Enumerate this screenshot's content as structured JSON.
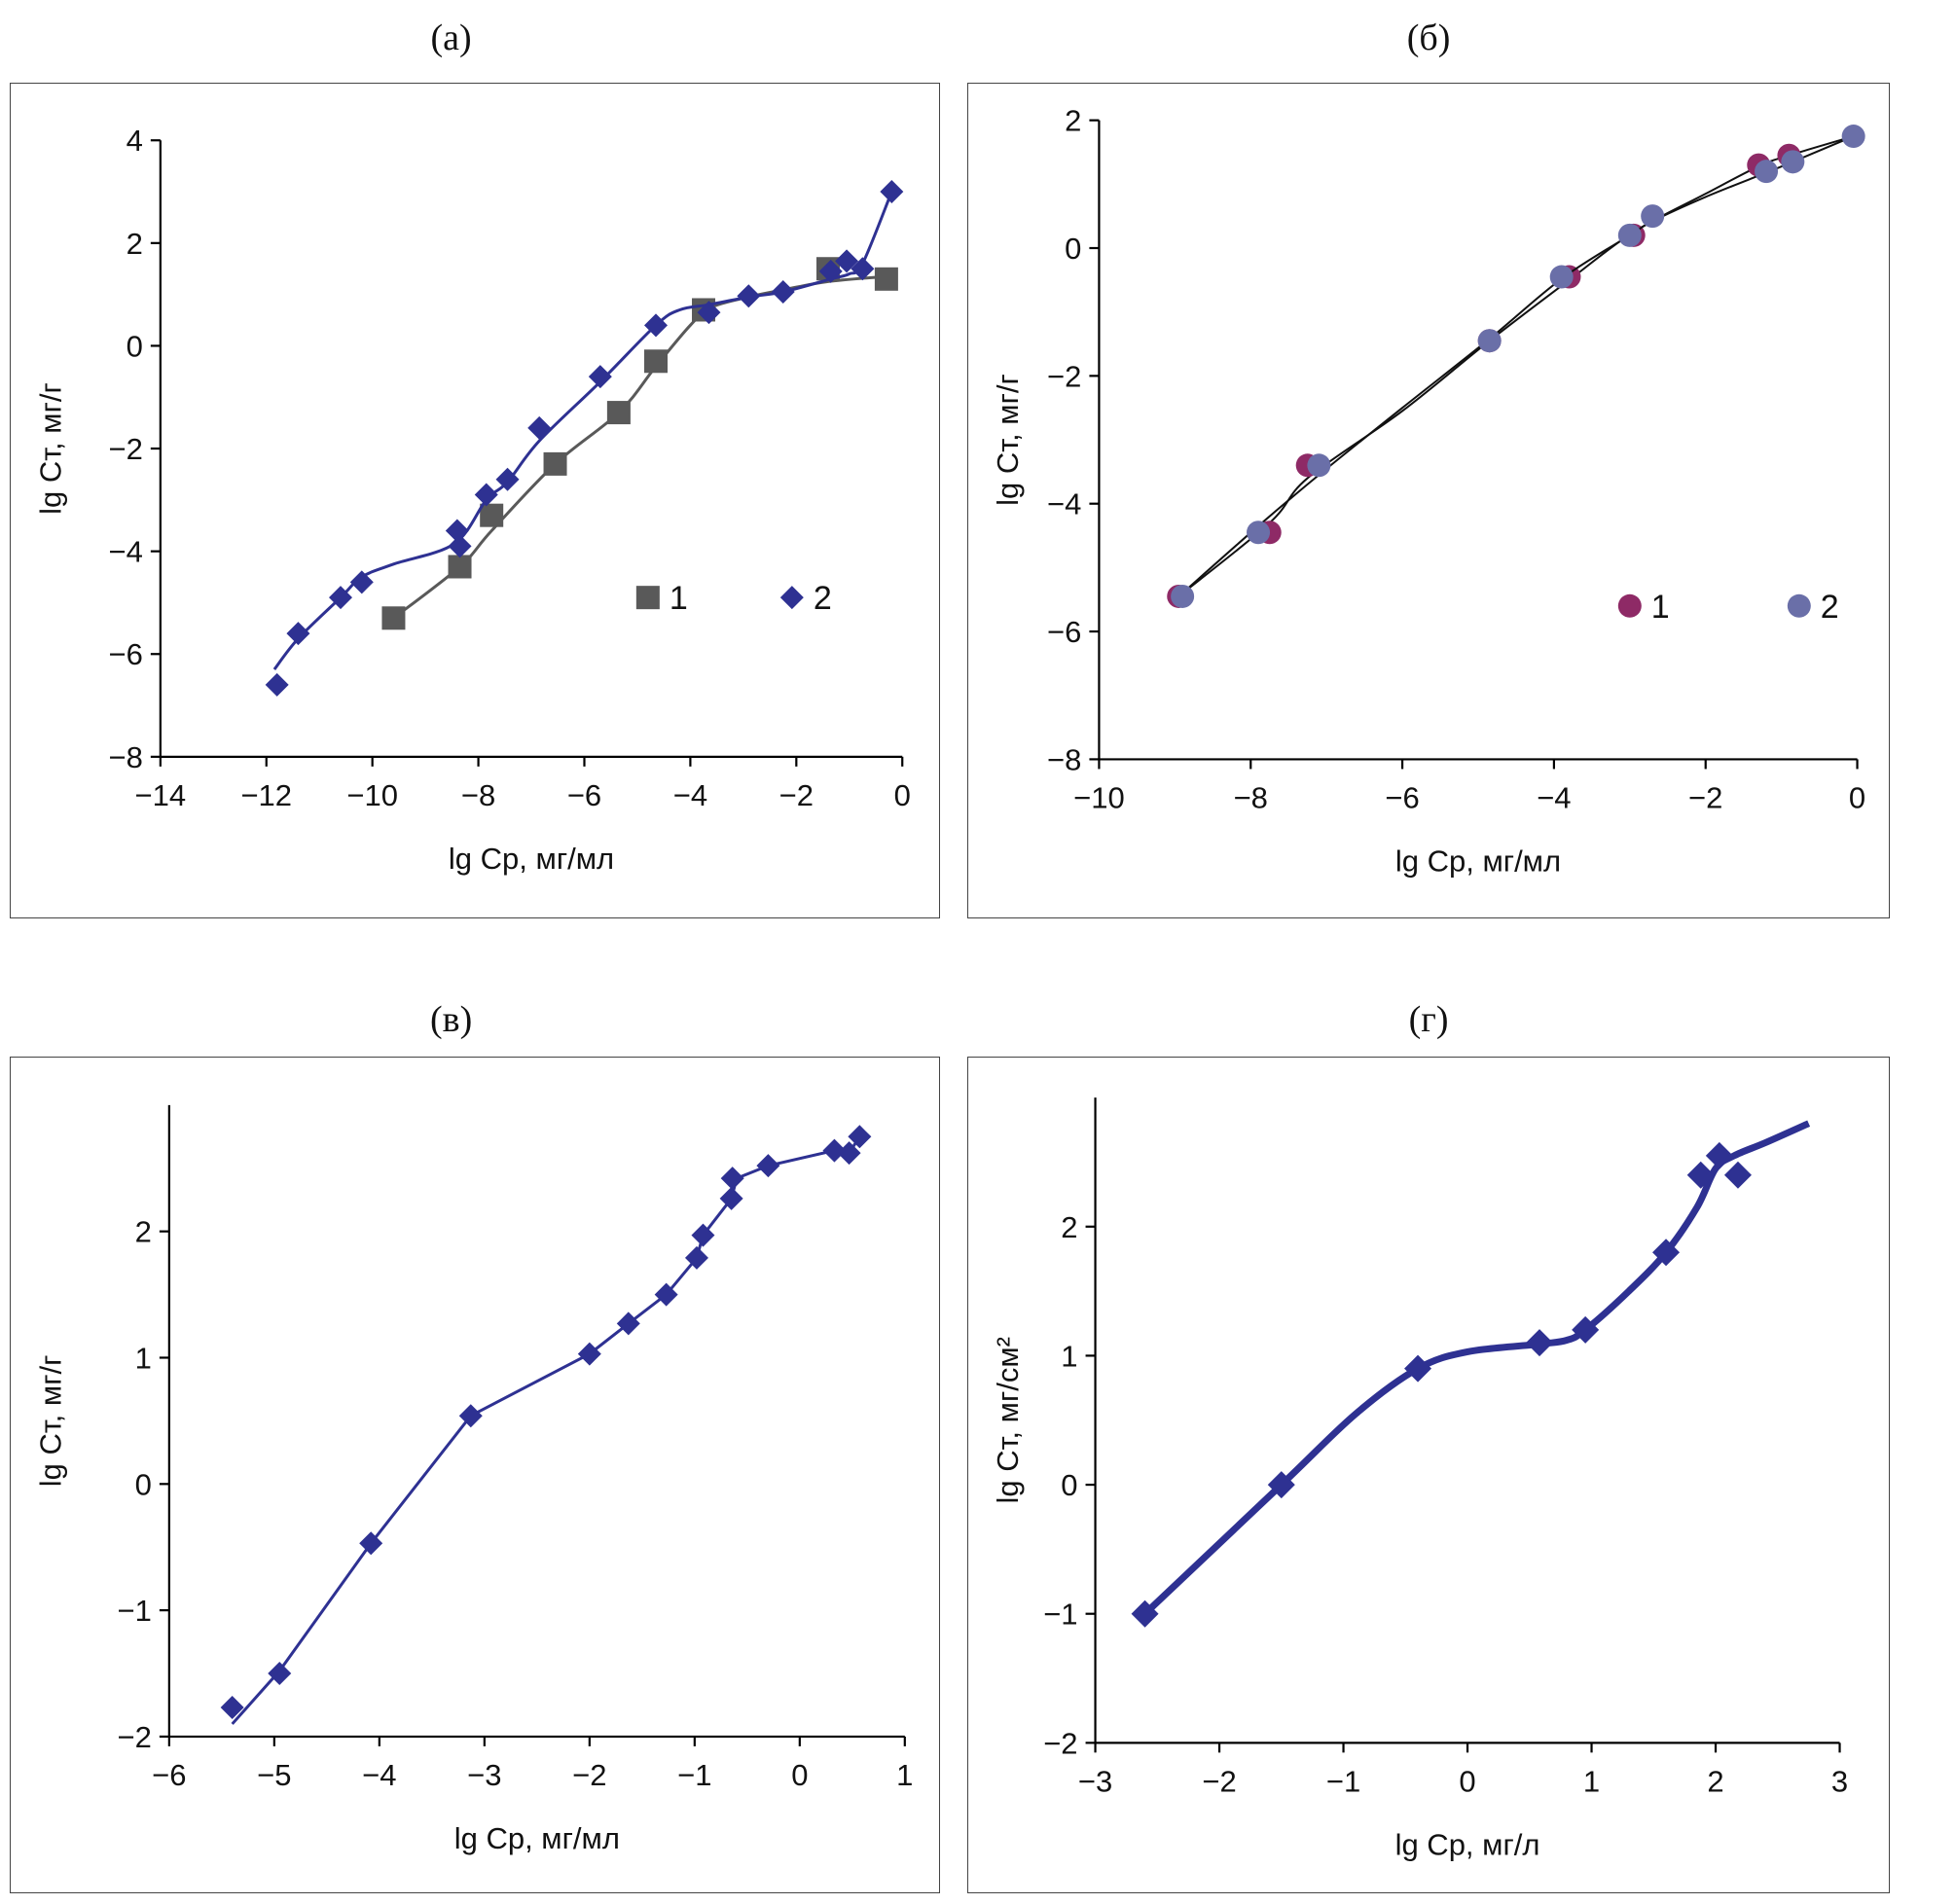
{
  "chart_data": [
    {
      "id": "a",
      "caption": "(а)",
      "type": "scatter",
      "xlabel": "lg Cр, мг/мл",
      "ylabel": "lg Cт, мг/г",
      "xlim": [
        -14,
        0
      ],
      "ylim": [
        -8,
        4
      ],
      "xticks": [
        -14,
        -12,
        -10,
        -8,
        -6,
        -4,
        -2,
        0
      ],
      "yticks": [
        -8,
        -6,
        -4,
        -2,
        0,
        2,
        4
      ],
      "xtick_labels": [
        "−14",
        "−12",
        "−10",
        "−8",
        "−6",
        "−4",
        "−2",
        "0"
      ],
      "ytick_labels": [
        "−8",
        "−6",
        "−4",
        "−2",
        "0",
        "2",
        "4"
      ],
      "grid": false,
      "legend_position": "lower-right",
      "series": [
        {
          "name": "1",
          "marker": "square",
          "color": "#595959",
          "line": "smooth",
          "points": [
            [
              -9.6,
              -5.3
            ],
            [
              -8.35,
              -4.3
            ],
            [
              -7.75,
              -3.3
            ],
            [
              -6.55,
              -2.3
            ],
            [
              -5.35,
              -1.3
            ],
            [
              -4.65,
              -0.3
            ],
            [
              -3.75,
              0.7
            ],
            [
              -1.4,
              1.5
            ],
            [
              -0.3,
              1.3
            ]
          ],
          "curve": [
            [
              -9.6,
              -5.3
            ],
            [
              -8.35,
              -4.3
            ],
            [
              -7.75,
              -3.6
            ],
            [
              -6.55,
              -2.3
            ],
            [
              -5.35,
              -1.3
            ],
            [
              -4.65,
              -0.4
            ],
            [
              -4.0,
              0.4
            ],
            [
              -3.6,
              0.75
            ],
            [
              -2.9,
              0.95
            ],
            [
              -2.2,
              1.1
            ],
            [
              -1.4,
              1.25
            ],
            [
              -0.3,
              1.35
            ]
          ]
        },
        {
          "name": "2",
          "marker": "diamond",
          "color": "#2e3192",
          "line": "smooth",
          "points": [
            [
              -11.8,
              -6.6
            ],
            [
              -11.4,
              -5.6
            ],
            [
              -10.6,
              -4.9
            ],
            [
              -10.2,
              -4.6
            ],
            [
              -8.4,
              -3.6
            ],
            [
              -8.35,
              -3.9
            ],
            [
              -7.85,
              -2.9
            ],
            [
              -7.45,
              -2.6
            ],
            [
              -6.85,
              -1.6
            ],
            [
              -5.7,
              -0.6
            ],
            [
              -4.65,
              0.4
            ],
            [
              -3.65,
              0.65
            ],
            [
              -2.9,
              0.97
            ],
            [
              -2.25,
              1.05
            ],
            [
              -1.35,
              1.45
            ],
            [
              -1.05,
              1.65
            ],
            [
              -0.75,
              1.5
            ],
            [
              -0.2,
              3.0
            ]
          ],
          "curve": [
            [
              -11.85,
              -6.3
            ],
            [
              -11.4,
              -5.7
            ],
            [
              -10.6,
              -4.9
            ],
            [
              -10.2,
              -4.5
            ],
            [
              -9.6,
              -4.25
            ],
            [
              -8.45,
              -3.85
            ],
            [
              -7.85,
              -3.0
            ],
            [
              -7.45,
              -2.65
            ],
            [
              -6.85,
              -1.85
            ],
            [
              -5.7,
              -0.7
            ],
            [
              -4.65,
              0.4
            ],
            [
              -4.2,
              0.7
            ],
            [
              -3.65,
              0.8
            ],
            [
              -2.9,
              0.95
            ],
            [
              -2.25,
              1.05
            ],
            [
              -1.35,
              1.3
            ],
            [
              -1.0,
              1.4
            ],
            [
              -0.75,
              1.6
            ],
            [
              -0.2,
              3.0
            ]
          ]
        }
      ]
    },
    {
      "id": "b",
      "caption": "(б)",
      "type": "scatter",
      "xlabel": "lg Cр, мг/мл",
      "ylabel": "lg Cт, мг/г",
      "xlim": [
        -10,
        0
      ],
      "ylim": [
        -8,
        2
      ],
      "xticks": [
        -10,
        -8,
        -6,
        -4,
        -2,
        0
      ],
      "yticks": [
        -8,
        -6,
        -4,
        -2,
        0,
        2
      ],
      "xtick_labels": [
        "−10",
        "−8",
        "−6",
        "−4",
        "−2",
        "0"
      ],
      "ytick_labels": [
        "−8",
        "−6",
        "−4",
        "−2",
        "0",
        "2"
      ],
      "grid": false,
      "legend_position": "lower-right",
      "series": [
        {
          "name": "1",
          "marker": "circle",
          "color": "#8e2a66",
          "line": "smooth",
          "points": [
            [
              -8.95,
              -5.45
            ],
            [
              -7.75,
              -4.45
            ],
            [
              -7.25,
              -3.4
            ],
            [
              -4.85,
              -1.45
            ],
            [
              -3.8,
              -0.45
            ],
            [
              -2.95,
              0.2
            ],
            [
              -1.3,
              1.3
            ],
            [
              -0.9,
              1.45
            ]
          ],
          "curve": [
            [
              -8.95,
              -5.45
            ],
            [
              -7.75,
              -4.3
            ],
            [
              -7.25,
              -3.6
            ],
            [
              -6,
              -2.55
            ],
            [
              -4.85,
              -1.45
            ],
            [
              -3.8,
              -0.5
            ],
            [
              -2.95,
              0.25
            ],
            [
              -2,
              0.85
            ],
            [
              -1.3,
              1.28
            ],
            [
              -0.9,
              1.45
            ],
            [
              -0.05,
              1.75
            ]
          ]
        },
        {
          "name": "2",
          "marker": "circle",
          "color": "#6a6fa8",
          "line": "smooth",
          "points": [
            [
              -8.9,
              -5.45
            ],
            [
              -7.9,
              -4.45
            ],
            [
              -7.1,
              -3.4
            ],
            [
              -4.85,
              -1.45
            ],
            [
              -3.9,
              -0.45
            ],
            [
              -3.0,
              0.2
            ],
            [
              -2.7,
              0.5
            ],
            [
              -1.2,
              1.2
            ],
            [
              -0.85,
              1.35
            ],
            [
              -0.05,
              1.75
            ]
          ],
          "curve": [
            [
              -8.9,
              -5.4
            ],
            [
              -7.9,
              -4.35
            ],
            [
              -7.1,
              -3.55
            ],
            [
              -6,
              -2.5
            ],
            [
              -4.85,
              -1.42
            ],
            [
              -3.9,
              -0.48
            ],
            [
              -3.0,
              0.2
            ],
            [
              -2.7,
              0.42
            ],
            [
              -2,
              0.8
            ],
            [
              -1.2,
              1.18
            ],
            [
              -0.85,
              1.35
            ],
            [
              -0.05,
              1.75
            ]
          ]
        }
      ]
    },
    {
      "id": "c",
      "caption": "(в)",
      "type": "line",
      "xlabel": "lg Cр, мг/мл",
      "ylabel": "lg Cт, мг/г",
      "xlim": [
        -6,
        1
      ],
      "ylim": [
        -2,
        3
      ],
      "xticks": [
        -6,
        -5,
        -4,
        -3,
        -2,
        -1,
        0,
        1
      ],
      "yticks": [
        -2,
        -1,
        0,
        1,
        2
      ],
      "xtick_labels": [
        "−6",
        "−5",
        "−4",
        "−3",
        "−2",
        "−1",
        "0",
        "1"
      ],
      "ytick_labels": [
        "−2",
        "−1",
        "0",
        "1",
        "2"
      ],
      "grid": false,
      "series": [
        {
          "name": "",
          "marker": "diamond",
          "color": "#2e3192",
          "line": "straight",
          "points": [
            [
              -5.4,
              -1.77
            ],
            [
              -4.95,
              -1.5
            ],
            [
              -4.08,
              -0.47
            ],
            [
              -3.13,
              0.54
            ],
            [
              -2.0,
              1.03
            ],
            [
              -1.63,
              1.27
            ],
            [
              -1.27,
              1.5
            ],
            [
              -0.98,
              1.79
            ],
            [
              -0.92,
              1.97
            ],
            [
              -0.65,
              2.26
            ],
            [
              -0.64,
              2.42
            ],
            [
              -0.3,
              2.52
            ],
            [
              0.33,
              2.64
            ],
            [
              0.47,
              2.62
            ],
            [
              0.57,
              2.75
            ]
          ],
          "curve": [
            [
              -5.4,
              -1.9
            ],
            [
              -4.95,
              -1.48
            ],
            [
              -4.08,
              -0.47
            ],
            [
              -3.13,
              0.54
            ],
            [
              -2.0,
              1.03
            ],
            [
              -1.63,
              1.27
            ],
            [
              -1.27,
              1.5
            ],
            [
              -0.98,
              1.79
            ],
            [
              -0.92,
              1.97
            ],
            [
              -0.65,
              2.26
            ],
            [
              -0.6,
              2.42
            ],
            [
              -0.3,
              2.52
            ],
            [
              0.33,
              2.64
            ],
            [
              0.47,
              2.62
            ],
            [
              0.57,
              2.75
            ]
          ]
        }
      ]
    },
    {
      "id": "d",
      "caption": "(г)",
      "type": "scatter",
      "xlabel": "lg Cр, мг/л",
      "ylabel": "lg Cт, мг/см²",
      "xlim": [
        -3,
        3
      ],
      "ylim": [
        -2,
        3
      ],
      "xticks": [
        -3,
        -2,
        -1,
        0,
        1,
        2,
        3
      ],
      "yticks": [
        -2,
        -1,
        0,
        1,
        2
      ],
      "xtick_labels": [
        "−3",
        "−2",
        "−1",
        "0",
        "1",
        "2",
        "3"
      ],
      "ytick_labels": [
        "−2",
        "−1",
        "0",
        "1",
        "2"
      ],
      "grid": false,
      "series": [
        {
          "name": "",
          "marker": "diamond",
          "color": "#2e3192",
          "line": "smooth",
          "points": [
            [
              -2.6,
              -1.0
            ],
            [
              -1.5,
              0.0
            ],
            [
              -0.4,
              0.9
            ],
            [
              0.58,
              1.1
            ],
            [
              0.95,
              1.2
            ],
            [
              1.6,
              1.8
            ],
            [
              1.88,
              2.4
            ],
            [
              2.03,
              2.55
            ],
            [
              2.18,
              2.4
            ]
          ],
          "curve": [
            [
              -2.6,
              -1.0
            ],
            [
              -1.5,
              0.0
            ],
            [
              -0.9,
              0.55
            ],
            [
              -0.4,
              0.9
            ],
            [
              0,
              1.03
            ],
            [
              0.58,
              1.09
            ],
            [
              0.8,
              1.12
            ],
            [
              0.95,
              1.2
            ],
            [
              1.3,
              1.5
            ],
            [
              1.6,
              1.8
            ],
            [
              1.85,
              2.15
            ],
            [
              2.0,
              2.45
            ],
            [
              2.15,
              2.55
            ],
            [
              2.4,
              2.65
            ],
            [
              2.75,
              2.8
            ]
          ]
        }
      ]
    }
  ]
}
